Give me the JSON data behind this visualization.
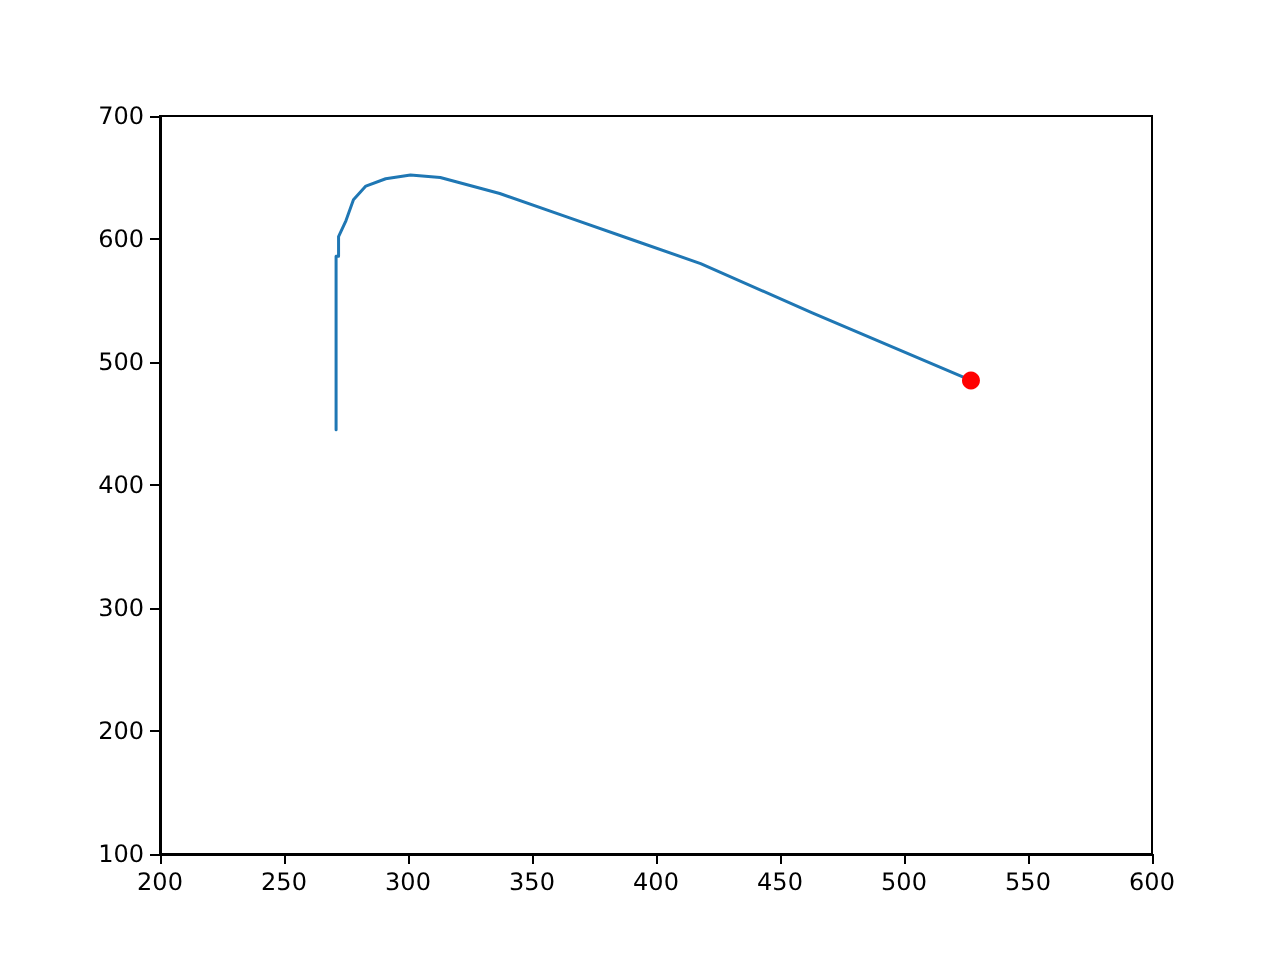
{
  "chart_data": {
    "type": "line",
    "xlim": [
      200,
      600
    ],
    "ylim": [
      100,
      700
    ],
    "xticks": [
      200,
      250,
      300,
      350,
      400,
      450,
      500,
      550,
      600
    ],
    "yticks": [
      100,
      200,
      300,
      400,
      500,
      600,
      700
    ],
    "grid": false,
    "series": [
      {
        "color": "#1f77b4",
        "marker": "none",
        "line_style": "solid",
        "x": [
          271,
          271,
          271,
          271,
          272,
          272,
          275,
          278,
          283,
          291,
          301,
          313,
          337,
          364,
          391,
          418,
          463,
          527
        ],
        "values": [
          445,
          526,
          526,
          586,
          586,
          602,
          615,
          632,
          643,
          649,
          652,
          650,
          637,
          618,
          599,
          580,
          540,
          485
        ]
      },
      {
        "type": "scatter",
        "color": "#ff0000",
        "marker": "circle",
        "x": [
          527
        ],
        "values": [
          485
        ]
      }
    ]
  }
}
